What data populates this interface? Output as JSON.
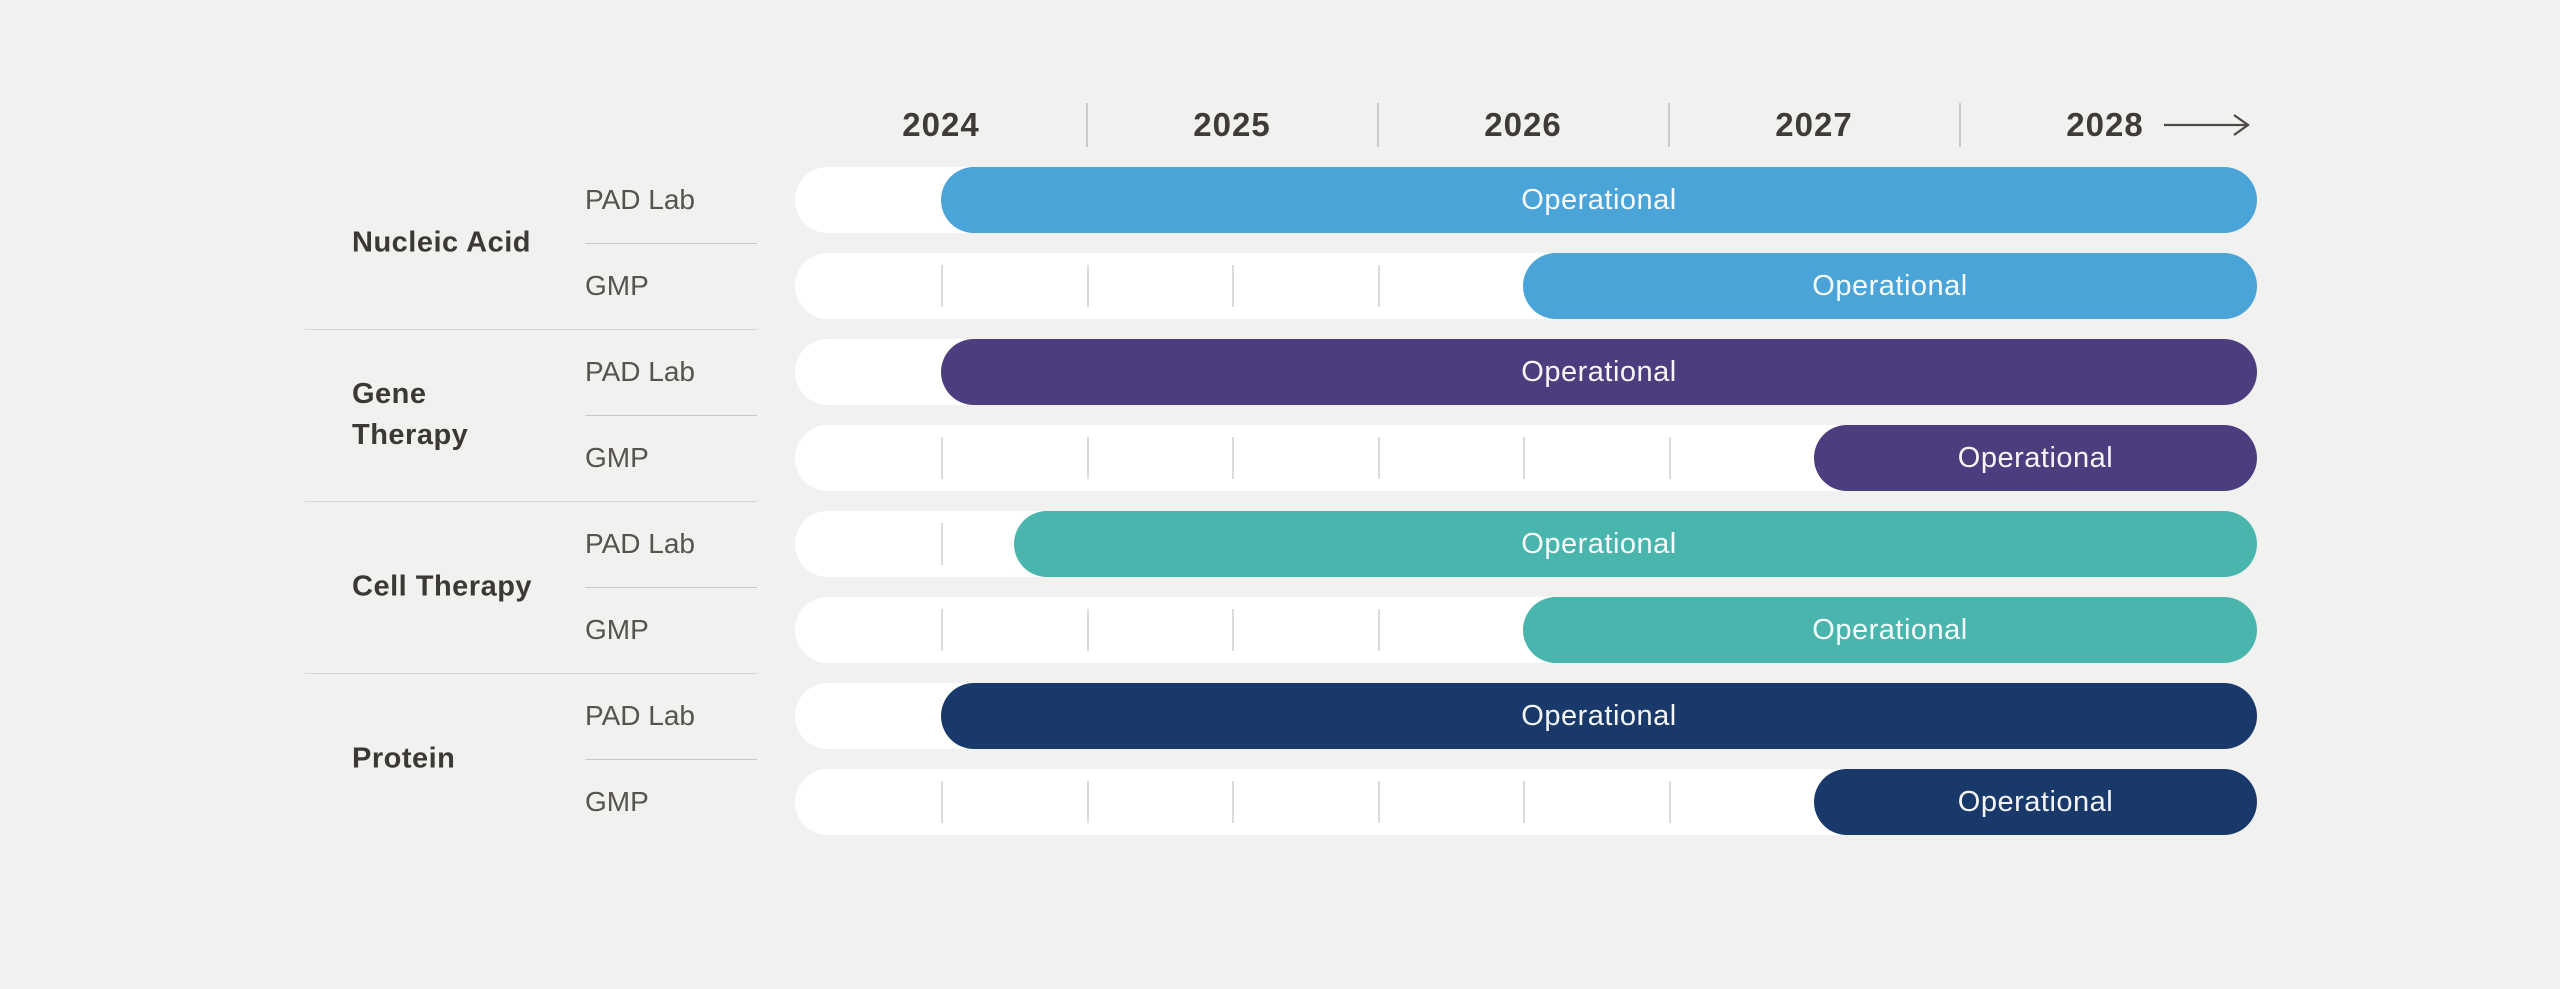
{
  "chart_data": {
    "type": "gantt",
    "title": "",
    "x_axis": {
      "tick_labels": [
        "2024",
        "2025",
        "2026",
        "2027",
        "2028"
      ],
      "range_years": [
        2023.5,
        2028.5
      ],
      "minor_tick_interval_years": 0.5,
      "has_forward_arrow": true
    },
    "groups": [
      "Nucleic Acid",
      "Gene Therapy",
      "Cell Therapy",
      "Protein"
    ],
    "facility_types": [
      "PAD Lab",
      "GMP"
    ],
    "bars": [
      {
        "group": "Nucleic Acid",
        "facility": "PAD Lab",
        "label": "Operational",
        "start_year": 2024.0,
        "end_year": 2028.5,
        "color": "#4aa4d8"
      },
      {
        "group": "Nucleic Acid",
        "facility": "GMP",
        "label": "Operational",
        "start_year": 2026.0,
        "end_year": 2028.5,
        "color": "#4aa4d8"
      },
      {
        "group": "Gene Therapy",
        "facility": "PAD Lab",
        "label": "Operational",
        "start_year": 2024.0,
        "end_year": 2028.5,
        "color": "#4b3d7e"
      },
      {
        "group": "Gene Therapy",
        "facility": "GMP",
        "label": "Operational",
        "start_year": 2027.0,
        "end_year": 2028.5,
        "color": "#4b3d7e"
      },
      {
        "group": "Cell Therapy",
        "facility": "PAD Lab",
        "label": "Operational",
        "start_year": 2024.25,
        "end_year": 2028.5,
        "color": "#49b5ad"
      },
      {
        "group": "Cell Therapy",
        "facility": "GMP",
        "label": "Operational",
        "start_year": 2026.0,
        "end_year": 2028.5,
        "color": "#49b5ad"
      },
      {
        "group": "Protein",
        "facility": "PAD Lab",
        "label": "Operational",
        "start_year": 2024.0,
        "end_year": 2028.5,
        "color": "#19396b"
      },
      {
        "group": "Protein",
        "facility": "GMP",
        "label": "Operational",
        "start_year": 2027.0,
        "end_year": 2028.5,
        "color": "#19396b"
      }
    ],
    "palette": {
      "nucleic_acid": "#4aa4d8",
      "gene_therapy": "#4b3d7e",
      "cell_therapy": "#49b5ad",
      "protein": "#19396b",
      "background": "#f1f1ef",
      "track": "#ffffff",
      "track_tick": "#dcdbd9",
      "axis_text": "#3e3b39",
      "group_text": "#3b3836",
      "facility_text": "#565350",
      "bar_text": "#ffffff"
    },
    "layout_hints": {
      "legend": "none",
      "grid": "half-year ticks inside white tracks",
      "bar_shape": "pill"
    }
  }
}
